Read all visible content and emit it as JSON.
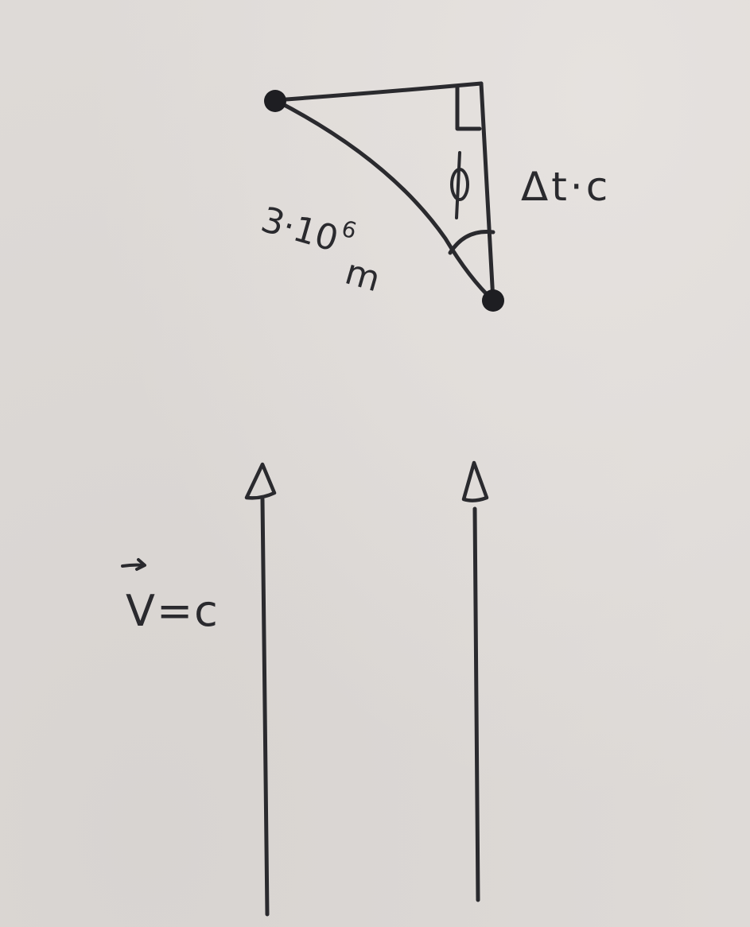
{
  "diagram": {
    "hypotenuse_label": {
      "value": "3·10",
      "exponent": "6",
      "unit": "m"
    },
    "vertical_leg_label": "Δt·c",
    "angle_symbol": "ϕ",
    "velocity_label": "V=c",
    "ink_color": "#2a2a2e",
    "paper_color": "#dedad7"
  }
}
